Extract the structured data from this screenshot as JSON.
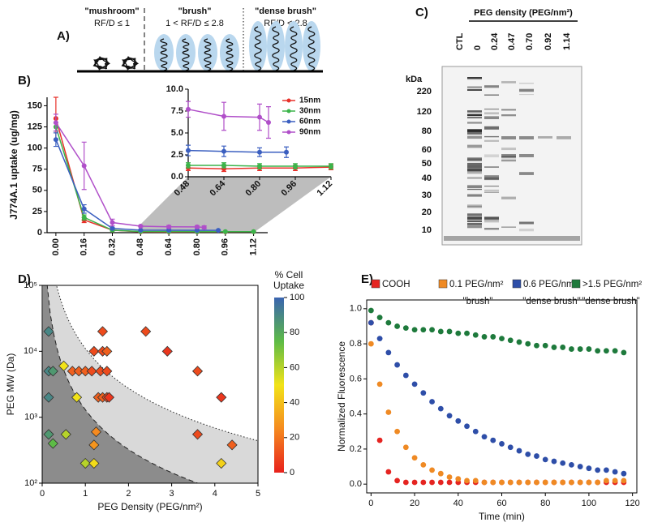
{
  "diagram": {
    "panel": "A)",
    "regimes": [
      {
        "name": "\"mushroom\"",
        "condition": "RF/D ≤ 1"
      },
      {
        "name": "\"brush\"",
        "condition": "1 < RF/D ≤ 2.8"
      },
      {
        "name": "\"dense brush\"",
        "condition": "RF/D < 2.8"
      }
    ]
  },
  "gel": {
    "panel": "C)",
    "title": "PEG density (PEG/nm²)",
    "lanes": [
      "CTL",
      "0",
      "0.24",
      "0.47",
      "0.70",
      "0.92",
      "1.14"
    ],
    "marker_unit": "kDa",
    "markers": [
      "220",
      "120",
      "80",
      "60",
      "50",
      "40",
      "30",
      "20",
      "10"
    ]
  },
  "chart_data": [
    {
      "type": "line",
      "panel": "B)",
      "ylabel": "J774A.1 uptake (ug/mg)",
      "xlim": [
        -0.05,
        1.2
      ],
      "ylim": [
        0,
        160
      ],
      "xticks": [
        {
          "value": 0,
          "label": "0.00"
        },
        {
          "value": 0.16,
          "label": "0.16"
        },
        {
          "value": 0.32,
          "label": "0.32"
        },
        {
          "value": 0.48,
          "label": "0.48"
        },
        {
          "value": 0.64,
          "label": "0.64"
        },
        {
          "value": 0.8,
          "label": "0.80"
        },
        {
          "value": 0.96,
          "label": "0.96"
        },
        {
          "value": 1.12,
          "label": "1.12"
        }
      ],
      "yticks": [
        0,
        25,
        50,
        75,
        100,
        125,
        150
      ],
      "series": [
        {
          "name": "15nm",
          "color": "#e8312a",
          "x": [
            0,
            0.16,
            0.32,
            0.48,
            0.64,
            0.8,
            0.96,
            1.12
          ],
          "values": [
            135,
            15,
            3,
            1,
            0.9,
            1,
            1,
            1.1
          ],
          "errors": [
            25,
            3,
            1,
            0.3,
            0.3,
            0.3,
            0.3,
            0.3
          ]
        },
        {
          "name": "30nm",
          "color": "#3bb44a",
          "x": [
            0,
            0.16,
            0.32,
            0.48,
            0.64,
            0.8,
            0.96,
            1.12
          ],
          "values": [
            125,
            18,
            3,
            1.3,
            1.3,
            1.2,
            1.2,
            1.2
          ],
          "errors": [
            5,
            3,
            1,
            0.3,
            0.3,
            0.3,
            0.3,
            0.3
          ]
        },
        {
          "name": "60nm",
          "color": "#3b5fc0",
          "x": [
            0,
            0.16,
            0.32,
            0.48,
            0.64,
            0.8,
            0.92
          ],
          "values": [
            110,
            28,
            5,
            3,
            2.9,
            2.8,
            2.8
          ],
          "errors": [
            8,
            5,
            1,
            0.6,
            0.6,
            0.5,
            0.6
          ]
        },
        {
          "name": "90nm",
          "color": "#b04fc9",
          "x": [
            0,
            0.16,
            0.32,
            0.48,
            0.64,
            0.8,
            0.84
          ],
          "values": [
            130,
            79,
            12,
            7.7,
            6.9,
            6.8,
            6.2
          ],
          "errors": [
            10,
            28,
            4,
            0.9,
            1.6,
            1.5,
            1.8
          ]
        }
      ],
      "inset": {
        "xlim": [
          0.48,
          1.12
        ],
        "ylim": [
          0,
          10
        ],
        "xticks": [
          {
            "value": 0.48,
            "label": "0.48"
          },
          {
            "value": 0.64,
            "label": "0.64"
          },
          {
            "value": 0.8,
            "label": "0.80"
          },
          {
            "value": 0.96,
            "label": "0.96"
          },
          {
            "value": 1.12,
            "label": "1.12"
          }
        ],
        "yticks": [
          {
            "value": 0,
            "label": "0.0"
          },
          {
            "value": 2.5,
            "label": "2.5"
          },
          {
            "value": 5,
            "label": "5.0"
          },
          {
            "value": 7.5,
            "label": "7.5"
          },
          {
            "value": 10,
            "label": "10.0"
          }
        ],
        "legend": "upper right"
      }
    },
    {
      "type": "scatter",
      "panel": "D)",
      "xlabel": "PEG Density (PEG/nm²)",
      "ylabel": "PEG MW (Da)",
      "log_y": true,
      "xlim": [
        0,
        5
      ],
      "ylim": [
        100,
        100000
      ],
      "xticks": [
        0,
        1,
        2,
        3,
        4,
        5
      ],
      "yticks": [
        {
          "value": 100,
          "label": "10²"
        },
        {
          "value": 1000,
          "label": "10³"
        },
        {
          "value": 10000,
          "label": "10⁴"
        },
        {
          "value": 100000,
          "label": "10⁵"
        }
      ],
      "x": [
        0.15,
        0.15,
        0.25,
        0.15,
        0.15,
        0.25,
        0.5,
        0.55,
        0.8,
        1.0,
        1.2,
        1.25,
        1.2,
        0.7,
        0.85,
        1.0,
        1.15,
        1.35,
        1.5,
        1.2,
        1.4,
        1.4,
        1.5,
        1.3,
        1.4,
        1.5,
        1.55,
        2.4,
        2.9,
        3.6,
        3.6,
        4.15,
        4.4,
        4.15
      ],
      "values": [
        20000,
        5000,
        5000,
        2000,
        550,
        400,
        6000,
        550,
        2000,
        200,
        200,
        600,
        380,
        5000,
        5000,
        5000,
        5000,
        5000,
        5000,
        10000,
        10000,
        20000,
        10000,
        2000,
        2000,
        2000,
        2000,
        20000,
        10000,
        5000,
        550,
        2000,
        380,
        200
      ],
      "color_values": [
        90,
        90,
        85,
        90,
        85,
        75,
        50,
        60,
        50,
        60,
        48,
        25,
        28,
        15,
        15,
        15,
        10,
        10,
        10,
        10,
        10,
        10,
        15,
        15,
        15,
        10,
        5,
        10,
        5,
        10,
        10,
        5,
        15,
        45
      ],
      "colorbar": {
        "label": [
          "% Cell",
          "Uptake"
        ],
        "lim": [
          0,
          100
        ],
        "ticks": [
          0,
          20,
          40,
          60,
          80,
          100
        ],
        "colors": [
          "#e8211c",
          "#f58a1f",
          "#f2e318",
          "#5dbb46",
          "#3a64b0"
        ]
      }
    },
    {
      "type": "scatter",
      "panel": "E)",
      "xlabel": "Time (min)",
      "ylabel": "Normalized Fluorescence",
      "xlim": [
        -2,
        122
      ],
      "ylim": [
        -0.05,
        1.05
      ],
      "xticks": [
        0,
        20,
        40,
        60,
        80,
        100,
        120
      ],
      "yticks": [
        {
          "value": 0,
          "label": "0.0"
        },
        {
          "value": 0.2,
          "label": "0.2"
        },
        {
          "value": 0.4,
          "label": "0.4"
        },
        {
          "value": 0.6,
          "label": "0.6"
        },
        {
          "value": 0.8,
          "label": "0.8"
        },
        {
          "value": 1,
          "label": "1.0"
        }
      ],
      "x": [
        0,
        4,
        8,
        12,
        16,
        20,
        24,
        28,
        32,
        36,
        40,
        44,
        48,
        52,
        56,
        60,
        64,
        68,
        72,
        76,
        80,
        84,
        88,
        92,
        96,
        100,
        104,
        108,
        112,
        116
      ],
      "series": [
        {
          "name": "COOH",
          "color": "#e52421",
          "values": [
            0.92,
            0.25,
            0.07,
            0.02,
            0.01,
            0.01,
            0.01,
            0.01,
            0.01,
            0.01,
            0.01,
            0.01,
            0.01,
            0.01,
            0.01,
            0.01,
            0.01,
            0.01,
            0.01,
            0.01,
            0.01,
            0.01,
            0.01,
            0.01,
            0.01,
            0.01,
            0.01,
            0.01,
            0.01,
            0.01
          ]
        },
        {
          "name": "0.1 PEG/nm²",
          "annotation": "\"brush\"",
          "color": "#ef8a24",
          "values": [
            0.8,
            0.57,
            0.41,
            0.3,
            0.21,
            0.15,
            0.11,
            0.08,
            0.06,
            0.04,
            0.03,
            0.02,
            0.02,
            0.01,
            0.01,
            0.01,
            0.01,
            0.01,
            0.01,
            0.01,
            0.01,
            0.01,
            0.01,
            0.01,
            0.01,
            0.01,
            0.01,
            0.02,
            0.02,
            0.02
          ]
        },
        {
          "name": "0.6 PEG/nm²",
          "annotation": "\"dense brush\"",
          "color": "#2e4ea8",
          "values": [
            0.92,
            0.83,
            0.75,
            0.68,
            0.62,
            0.57,
            0.52,
            0.47,
            0.43,
            0.39,
            0.36,
            0.33,
            0.3,
            0.27,
            0.25,
            0.23,
            0.21,
            0.19,
            0.17,
            0.16,
            0.14,
            0.13,
            0.12,
            0.11,
            0.1,
            0.09,
            0.08,
            0.08,
            0.07,
            0.06
          ]
        },
        {
          "name": ">1.5 PEG/nm²",
          "annotation": "\"dense brush\"",
          "color": "#1e7a3c",
          "values": [
            0.99,
            0.95,
            0.92,
            0.9,
            0.89,
            0.88,
            0.88,
            0.88,
            0.87,
            0.87,
            0.86,
            0.86,
            0.85,
            0.84,
            0.84,
            0.83,
            0.82,
            0.81,
            0.8,
            0.79,
            0.79,
            0.78,
            0.78,
            0.77,
            0.77,
            0.77,
            0.76,
            0.76,
            0.76,
            0.75
          ]
        }
      ]
    }
  ]
}
